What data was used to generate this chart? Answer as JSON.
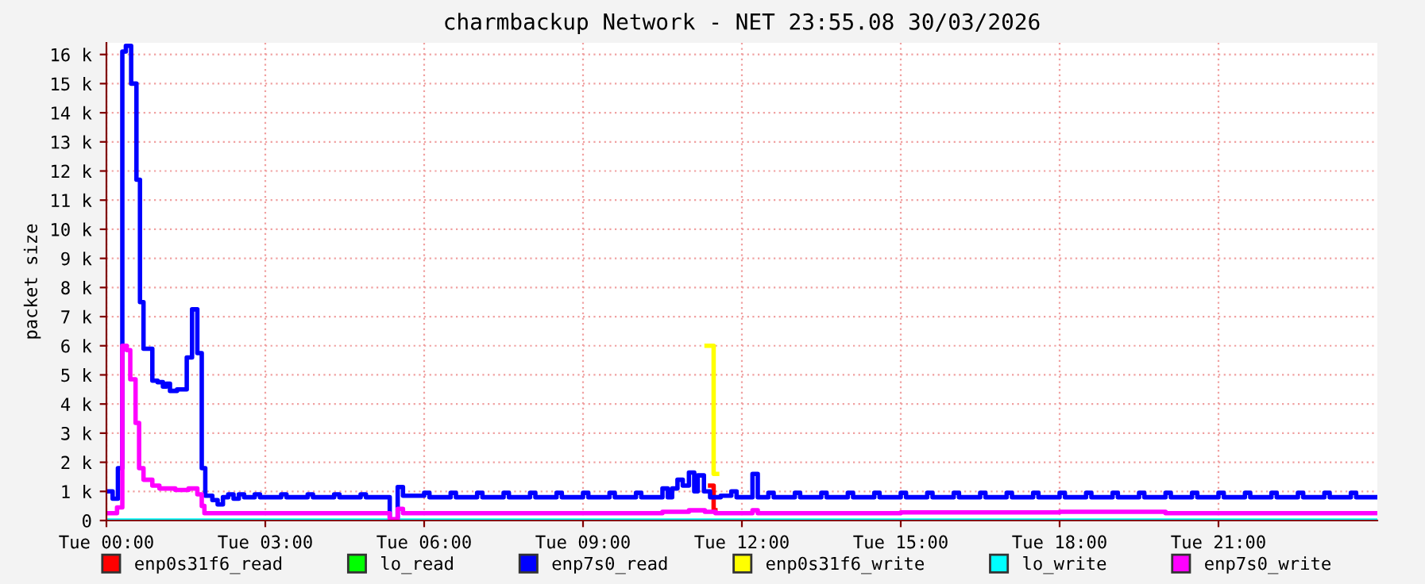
{
  "chart_data": {
    "type": "step",
    "title": "charmbackup Network - NET 23:55.08 30/03/2026",
    "ylabel": "packet size",
    "xlim": [
      "2026-03-30T00:00",
      "2026-03-31T00:00"
    ],
    "ylim": [
      0,
      16400
    ],
    "xticks": [
      {
        "value": "2026-03-30T00:00",
        "label": "Tue 00:00"
      },
      {
        "value": "2026-03-30T03:00",
        "label": "Tue 03:00"
      },
      {
        "value": "2026-03-30T06:00",
        "label": "Tue 06:00"
      },
      {
        "value": "2026-03-30T09:00",
        "label": "Tue 09:00"
      },
      {
        "value": "2026-03-30T12:00",
        "label": "Tue 12:00"
      },
      {
        "value": "2026-03-30T15:00",
        "label": "Tue 15:00"
      },
      {
        "value": "2026-03-30T18:00",
        "label": "Tue 18:00"
      },
      {
        "value": "2026-03-30T21:00",
        "label": "Tue 21:00"
      }
    ],
    "yticks": [
      0,
      {
        "value": 1000,
        "label": "1 k"
      },
      {
        "value": 2000,
        "label": "2 k"
      },
      {
        "value": 3000,
        "label": "3 k"
      },
      {
        "value": 4000,
        "label": "4 k"
      },
      {
        "value": 5000,
        "label": "5 k"
      },
      {
        "value": 6000,
        "label": "6 k"
      },
      {
        "value": 7000,
        "label": "7 k"
      },
      {
        "value": 8000,
        "label": "8 k"
      },
      {
        "value": 9000,
        "label": "9 k"
      },
      {
        "value": 10000,
        "label": "10 k"
      },
      {
        "value": 11000,
        "label": "11 k"
      },
      {
        "value": 12000,
        "label": "12 k"
      },
      {
        "value": 13000,
        "label": "13 k"
      },
      {
        "value": 14000,
        "label": "14 k"
      },
      {
        "value": 15000,
        "label": "15 k"
      },
      {
        "value": 16000,
        "label": "16 k"
      }
    ],
    "grid": true,
    "legend": "bottom",
    "series": [
      {
        "name": "enp0s31f6_read",
        "color": "#ff0000",
        "x": [
          "2026-03-30T11:24",
          "2026-03-30T11:28",
          "2026-03-30T11:30"
        ],
        "values": [
          1200,
          350,
          350
        ]
      },
      {
        "name": "lo_read",
        "color": "#00ff00"
      },
      {
        "name": "enp7s0_read",
        "color": "#0000ff",
        "x": [
          "2026-03-30T00:00",
          "2026-03-30T00:07",
          "2026-03-30T00:13",
          "2026-03-30T00:18",
          "2026-03-30T00:22",
          "2026-03-30T00:28",
          "2026-03-30T00:34",
          "2026-03-30T00:38",
          "2026-03-30T00:42",
          "2026-03-30T00:52",
          "2026-03-30T00:58",
          "2026-03-30T01:04",
          "2026-03-30T01:08",
          "2026-03-30T01:12",
          "2026-03-30T01:20",
          "2026-03-30T01:31",
          "2026-03-30T01:37",
          "2026-03-30T01:43",
          "2026-03-30T01:48",
          "2026-03-30T01:52",
          "2026-03-30T02:00",
          "2026-03-30T02:06",
          "2026-03-30T02:12",
          "2026-03-30T02:18",
          "2026-03-30T02:24",
          "2026-03-30T02:30",
          "2026-03-30T02:36",
          "2026-03-30T02:48",
          "2026-03-30T02:54",
          "2026-03-30T03:18",
          "2026-03-30T03:24",
          "2026-03-30T03:48",
          "2026-03-30T03:54",
          "2026-03-30T04:18",
          "2026-03-30T04:24",
          "2026-03-30T04:48",
          "2026-03-30T04:54",
          "2026-03-30T05:21",
          "2026-03-30T05:30",
          "2026-03-30T05:36",
          "2026-03-30T06:00",
          "2026-03-30T06:06",
          "2026-03-30T06:30",
          "2026-03-30T06:36",
          "2026-03-30T07:00",
          "2026-03-30T07:06",
          "2026-03-30T07:30",
          "2026-03-30T07:36",
          "2026-03-30T08:00",
          "2026-03-30T08:06",
          "2026-03-30T08:30",
          "2026-03-30T08:36",
          "2026-03-30T09:00",
          "2026-03-30T09:06",
          "2026-03-30T09:30",
          "2026-03-30T09:36",
          "2026-03-30T10:00",
          "2026-03-30T10:06",
          "2026-03-30T10:30",
          "2026-03-30T10:36",
          "2026-03-30T10:41",
          "2026-03-30T10:47",
          "2026-03-30T10:53",
          "2026-03-30T11:00",
          "2026-03-30T11:06",
          "2026-03-30T11:10",
          "2026-03-30T11:17",
          "2026-03-30T11:24",
          "2026-03-30T11:36",
          "2026-03-30T11:48",
          "2026-03-30T11:54",
          "2026-03-30T12:12",
          "2026-03-30T12:18",
          "2026-03-30T12:30",
          "2026-03-30T12:36",
          "2026-03-30T13:00",
          "2026-03-30T13:06",
          "2026-03-30T13:30",
          "2026-03-30T13:36",
          "2026-03-30T14:00",
          "2026-03-30T14:06",
          "2026-03-30T14:30",
          "2026-03-30T14:36",
          "2026-03-30T15:00",
          "2026-03-30T15:06",
          "2026-03-30T15:30",
          "2026-03-30T15:36",
          "2026-03-30T16:00",
          "2026-03-30T16:06",
          "2026-03-30T16:30",
          "2026-03-30T16:36",
          "2026-03-30T17:00",
          "2026-03-30T17:06",
          "2026-03-30T17:30",
          "2026-03-30T17:36",
          "2026-03-30T18:00",
          "2026-03-30T18:06",
          "2026-03-30T18:30",
          "2026-03-30T18:36",
          "2026-03-30T19:00",
          "2026-03-30T19:06",
          "2026-03-30T19:30",
          "2026-03-30T19:36",
          "2026-03-30T20:00",
          "2026-03-30T20:06",
          "2026-03-30T20:30",
          "2026-03-30T20:36",
          "2026-03-30T21:00",
          "2026-03-30T21:06",
          "2026-03-30T21:30",
          "2026-03-30T21:36",
          "2026-03-30T22:00",
          "2026-03-30T22:06",
          "2026-03-30T22:30",
          "2026-03-30T22:36",
          "2026-03-30T23:00",
          "2026-03-30T23:06",
          "2026-03-30T23:30",
          "2026-03-30T23:36",
          "2026-03-31T00:00"
        ],
        "values": [
          1000,
          750,
          1800,
          16100,
          16300,
          15000,
          11700,
          7500,
          5900,
          4800,
          4750,
          4600,
          4700,
          4450,
          4500,
          5600,
          7250,
          5750,
          1800,
          850,
          700,
          550,
          800,
          900,
          750,
          900,
          800,
          900,
          800,
          900,
          800,
          900,
          800,
          900,
          800,
          900,
          800,
          0,
          1150,
          850,
          950,
          800,
          950,
          800,
          950,
          800,
          950,
          800,
          950,
          800,
          950,
          800,
          950,
          800,
          950,
          800,
          950,
          800,
          1100,
          800,
          1100,
          1400,
          1200,
          1650,
          1000,
          1550,
          1000,
          800,
          850,
          1000,
          800,
          1600,
          800,
          950,
          800,
          950,
          800,
          950,
          800,
          950,
          800,
          950,
          800,
          950,
          800,
          950,
          800,
          950,
          800,
          950,
          800,
          950,
          800,
          950,
          800,
          950,
          800,
          950,
          800,
          950,
          800,
          950,
          800,
          950,
          800,
          950,
          800,
          950,
          800,
          950,
          800,
          950,
          800,
          950,
          800,
          950,
          800,
          950,
          800,
          800
        ]
      },
      {
        "name": "enp0s31f6_write",
        "color": "#ffff00",
        "x": [
          "2026-03-30T11:20",
          "2026-03-30T11:28",
          "2026-03-30T11:32"
        ],
        "values": [
          6000,
          1600,
          1600
        ]
      },
      {
        "name": "lo_write",
        "color": "#00ffff",
        "x": [
          "2026-03-30T00:00",
          "2026-03-31T00:00"
        ],
        "values": [
          0,
          0
        ]
      },
      {
        "name": "enp7s0_write",
        "color": "#ff00ff",
        "x": [
          "2026-03-30T00:00",
          "2026-03-30T00:12",
          "2026-03-30T00:18",
          "2026-03-30T00:23",
          "2026-03-30T00:27",
          "2026-03-30T00:33",
          "2026-03-30T00:37",
          "2026-03-30T00:42",
          "2026-03-30T00:52",
          "2026-03-30T01:00",
          "2026-03-30T01:18",
          "2026-03-30T01:33",
          "2026-03-30T01:43",
          "2026-03-30T01:48",
          "2026-03-30T01:51",
          "2026-03-30T05:21",
          "2026-03-30T05:30",
          "2026-03-30T05:36",
          "2026-03-30T10:30",
          "2026-03-30T11:00",
          "2026-03-30T11:18",
          "2026-03-30T11:30",
          "2026-03-30T12:12",
          "2026-03-30T12:18",
          "2026-03-30T15:00",
          "2026-03-30T18:00",
          "2026-03-30T20:00",
          "2026-03-31T00:00"
        ],
        "values": [
          250,
          450,
          6000,
          5850,
          4850,
          3350,
          1800,
          1400,
          1200,
          1100,
          1050,
          1100,
          900,
          500,
          250,
          50,
          400,
          250,
          300,
          350,
          300,
          250,
          350,
          250,
          280,
          300,
          250,
          250
        ]
      }
    ]
  }
}
